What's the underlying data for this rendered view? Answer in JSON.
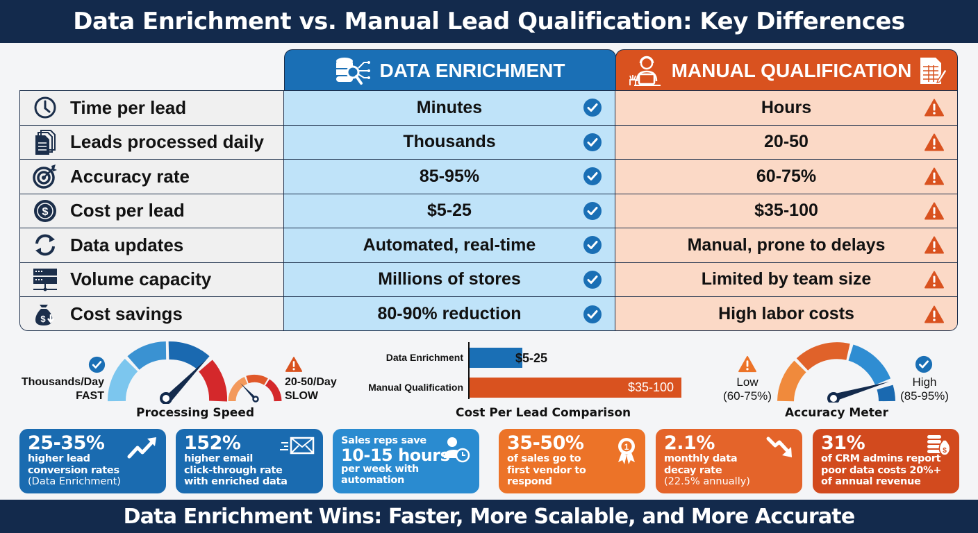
{
  "header": {
    "title": "Data Enrichment vs. Manual Lead Qualification: Key Differences"
  },
  "columns": {
    "data_enrichment": {
      "label": "DATA ENRICHMENT",
      "icon": "database-search-icon",
      "color": "#1a6fb5"
    },
    "manual_qualification": {
      "label": "MANUAL QUALIFICATION",
      "icon": "support-agent-icon",
      "icon_right": "spreadsheet-edit-icon",
      "color": "#d9521f"
    }
  },
  "rows": [
    {
      "label": "Time per lead",
      "icon": "clock-icon",
      "de": "Minutes",
      "mq": "Hours"
    },
    {
      "label": "Leads processed daily",
      "icon": "documents-icon",
      "de": "Thousands",
      "mq": "20-50"
    },
    {
      "label": "Accuracy rate",
      "icon": "target-icon",
      "de": "85-95%",
      "mq": "60-75%"
    },
    {
      "label": "Cost per lead",
      "icon": "dollar-coin-icon",
      "de": "$5-25",
      "mq": "$35-100"
    },
    {
      "label": "Data updates",
      "icon": "refresh-icon",
      "de": "Automated, real-time",
      "mq": "Manual, prone to delays"
    },
    {
      "label": "Volume capacity",
      "icon": "server-icon",
      "de": "Millions of stores",
      "mq": "Limited by team size"
    },
    {
      "label": "Cost savings",
      "icon": "money-bag-down-icon",
      "de": "80-90% reduction",
      "mq": "High labor costs"
    }
  ],
  "processing_speed": {
    "title": "Processing Speed",
    "fast_label_1": "Thousands/Day",
    "fast_label_2": "FAST",
    "slow_label_1": "20-50/Day",
    "slow_label_2": "SLOW"
  },
  "accuracy_meter": {
    "title": "Accuracy Meter",
    "low_label_1": "Low",
    "low_label_2": "(60-75%)",
    "high_label_1": "High",
    "high_label_2": "(85-95%)"
  },
  "chart_data": {
    "type": "bar",
    "title": "Cost Per Lead Comparison",
    "orientation": "horizontal",
    "categories": [
      "Data Enrichment",
      "Manual Qualification"
    ],
    "values": [
      25,
      100
    ],
    "value_labels": [
      "$5-25",
      "$35-100"
    ],
    "colors": [
      "#1a6fb5",
      "#d9521f"
    ],
    "xlabel": "",
    "ylabel": "",
    "grid": false
  },
  "stats": [
    {
      "big": "25-35%",
      "lines": [
        "higher lead",
        "conversion rates"
      ],
      "note": "(Data Enrichment)",
      "icon": "trend-up-icon",
      "color": "#1a6bb0"
    },
    {
      "big": "152%",
      "lines": [
        "higher email",
        "click-through rate",
        "with enriched data"
      ],
      "note": "",
      "icon": "email-fast-icon",
      "color": "#1a6bb0"
    },
    {
      "pre": "Sales reps save",
      "big": "10-15 hours",
      "lines": [
        "per week with",
        "automation"
      ],
      "note": "",
      "icon": "user-clock-icon",
      "color": "#2a8bd0"
    },
    {
      "big": "35-50%",
      "lines": [
        "of sales go to",
        "first vendor to",
        "respond"
      ],
      "note": "",
      "icon": "award-ribbon-icon",
      "color": "#ec7328"
    },
    {
      "big": "2.1%",
      "lines": [
        "monthly data",
        "decay rate"
      ],
      "note": "(22.5% annually)",
      "icon": "trend-down-icon",
      "color": "#e4642a"
    },
    {
      "big": "31%",
      "lines": [
        "of CRM admins report",
        "poor data costs 20%+",
        "of annual revenue"
      ],
      "note": "",
      "icon": "coins-bag-icon",
      "color": "#d24a1e"
    }
  ],
  "footer": {
    "text": "Data Enrichment Wins: Faster, More Scalable, and More Accurate"
  }
}
